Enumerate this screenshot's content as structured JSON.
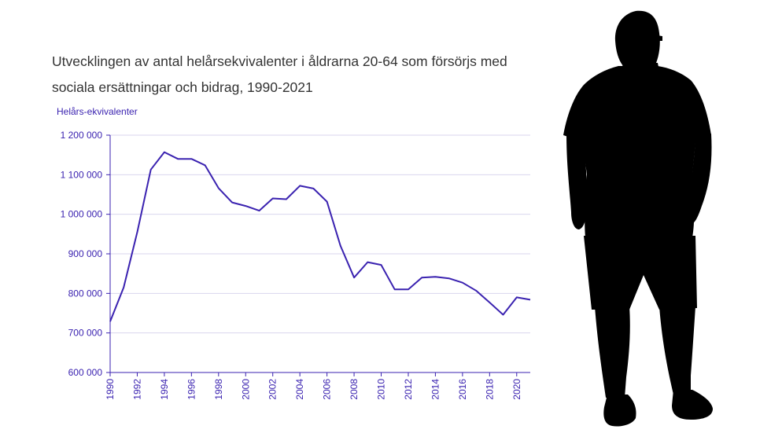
{
  "title_line_1": "Utvecklingen av antal helårsekvivalenter i åldrarna 20-64 som försörjs med",
  "title_line_2": "sociala ersättningar och bidrag, 1990-2021",
  "colors": {
    "line": "#3a22b0",
    "axis_text": "#3a22b0",
    "grid": "#d9d6ee",
    "title": "#333333",
    "silhouette": "#000000"
  },
  "silhouette_icon": "person-silhouette-icon",
  "chart_data": {
    "type": "line",
    "title": "Utvecklingen av antal helårsekvivalenter i åldrarna 20-64 som försörjs med sociala ersättningar och bidrag, 1990-2021",
    "ylabel": "Helårs-ekvivalenter",
    "xlabel": "",
    "ylim": [
      600000,
      1200000
    ],
    "xlim": [
      1990,
      2021
    ],
    "grid": true,
    "y_ticks": [
      600000,
      700000,
      800000,
      900000,
      1000000,
      1100000,
      1200000
    ],
    "y_tick_labels": [
      "600 000",
      "700 000",
      "800 000",
      "900 000",
      "1 000 000",
      "1 100 000",
      "1 200 000"
    ],
    "x_tick_labels": [
      "1990",
      "1992",
      "1994",
      "1996",
      "1998",
      "2000",
      "2002",
      "2004",
      "2006",
      "2008",
      "2010",
      "2012",
      "2014",
      "2016",
      "2018",
      "2020"
    ],
    "series": [
      {
        "name": "Helårsekvivalenter",
        "x": [
          1990,
          1991,
          1992,
          1993,
          1994,
          1995,
          1996,
          1997,
          1998,
          1999,
          2000,
          2001,
          2002,
          2003,
          2004,
          2005,
          2006,
          2007,
          2008,
          2009,
          2010,
          2011,
          2012,
          2013,
          2014,
          2015,
          2016,
          2017,
          2018,
          2019,
          2020,
          2021
        ],
        "values": [
          729000,
          815000,
          955000,
          1113000,
          1157000,
          1140000,
          1140000,
          1124000,
          1066000,
          1030000,
          1021000,
          1009000,
          1040000,
          1038000,
          1072000,
          1065000,
          1032000,
          920000,
          840000,
          879000,
          872000,
          810000,
          810000,
          840000,
          842000,
          838000,
          827000,
          807000,
          777000,
          746000,
          790000,
          784000
        ]
      }
    ]
  }
}
